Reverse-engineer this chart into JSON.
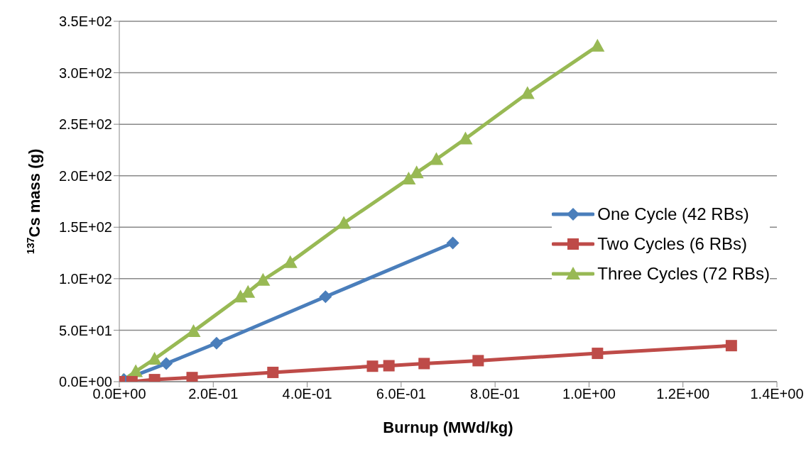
{
  "chart_data": {
    "type": "line",
    "xlabel": "Burnup (MWd/kg)",
    "ylabel": "$^{137}$Cs mass (g)",
    "xlim": [
      0,
      1.4
    ],
    "xticks": [
      {
        "value": 0,
        "label": "0.0E+00"
      },
      {
        "value": 0.2,
        "label": "2.0E-01"
      },
      {
        "value": 0.4,
        "label": "4.0E-01"
      },
      {
        "value": 0.6,
        "label": "6.0E-01"
      },
      {
        "value": 0.8,
        "label": "8.0E-01"
      },
      {
        "value": 1.0,
        "label": "1.0E+00"
      },
      {
        "value": 1.2,
        "label": "1.2E+00"
      },
      {
        "value": 1.4,
        "label": "1.4E+00"
      }
    ],
    "ylim": [
      0,
      350
    ],
    "yticks": [
      {
        "value": 0,
        "label": "0.0E+00"
      },
      {
        "value": 50,
        "label": "5.0E+01"
      },
      {
        "value": 100,
        "label": "1.0E+02"
      },
      {
        "value": 150,
        "label": "1.5E+02"
      },
      {
        "value": 200,
        "label": "2.0E+02"
      },
      {
        "value": 250,
        "label": "2.5E+02"
      },
      {
        "value": 300,
        "label": "3.0E+02"
      },
      {
        "value": 350,
        "label": "3.5E+02"
      }
    ],
    "grid": "y",
    "legend": "right",
    "line_style": "solid",
    "series": [
      {
        "name": "One Cycle (42 RBs)",
        "color": "#4a7ebb",
        "marker": "diamond",
        "x": [
          0.01,
          0.1,
          0.207,
          0.439,
          0.71
        ],
        "values": [
          2,
          17.6,
          37.4,
          82.5,
          134.7
        ]
      },
      {
        "name": "Two Cycles (6 RBs)",
        "color": "#be4b48",
        "marker": "square",
        "x": [
          0,
          0.027,
          0.075,
          0.155,
          0.327,
          0.539,
          0.574,
          0.649,
          0.764,
          1.018,
          1.303
        ],
        "values": [
          0,
          0,
          2,
          4,
          9,
          15,
          15.5,
          17.6,
          20.4,
          27.5,
          35
        ]
      },
      {
        "name": "Three Cycles (72 RBs)",
        "color": "#98b954",
        "marker": "triangle",
        "x": [
          0.008,
          0.035,
          0.075,
          0.158,
          0.258,
          0.274,
          0.306,
          0.364,
          0.478,
          0.616,
          0.633,
          0.675,
          0.737,
          0.869,
          1.018
        ],
        "values": [
          1.4,
          10,
          22,
          49,
          82.5,
          87,
          98.7,
          116,
          154,
          197,
          203,
          216,
          236,
          280,
          326
        ]
      }
    ]
  }
}
